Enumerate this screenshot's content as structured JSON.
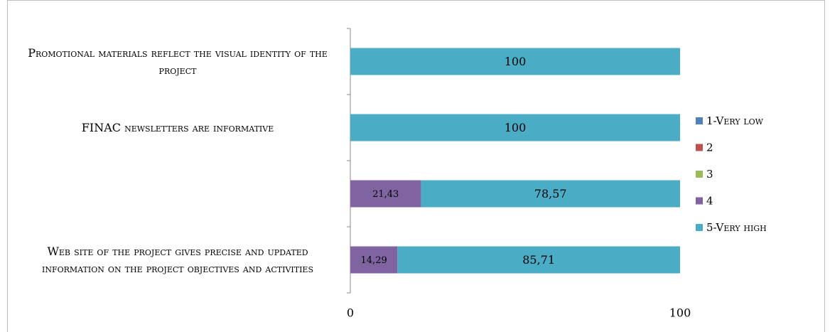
{
  "chart_data": {
    "type": "stacked-bar-horizontal",
    "categories": [
      "Promotional materials reflect the visual identity of the project",
      "FINAC newsletters are informative",
      null,
      "Web site of the project gives precise and updated information on the project objectives and activities"
    ],
    "series": [
      {
        "name": "1-Very low",
        "color": "#4f81bd",
        "values": [
          0,
          0,
          0,
          0
        ]
      },
      {
        "name": "2",
        "color": "#c0504d",
        "values": [
          0,
          0,
          0,
          0
        ]
      },
      {
        "name": "3",
        "color": "#9bbb59",
        "values": [
          0,
          0,
          0,
          0
        ]
      },
      {
        "name": "4",
        "color": "#8064a2",
        "values": [
          0,
          0,
          21.43,
          14.29
        ],
        "value_labels": [
          null,
          null,
          "21,43",
          "14,29"
        ]
      },
      {
        "name": "5-Very high",
        "color": "#4bacc6",
        "values": [
          100,
          100,
          78.57,
          85.71
        ],
        "value_labels": [
          "100",
          "100",
          "78,57",
          "85,71"
        ]
      }
    ],
    "xlim": [
      0,
      100
    ],
    "xticks": [
      0,
      100
    ],
    "legend": "right"
  }
}
